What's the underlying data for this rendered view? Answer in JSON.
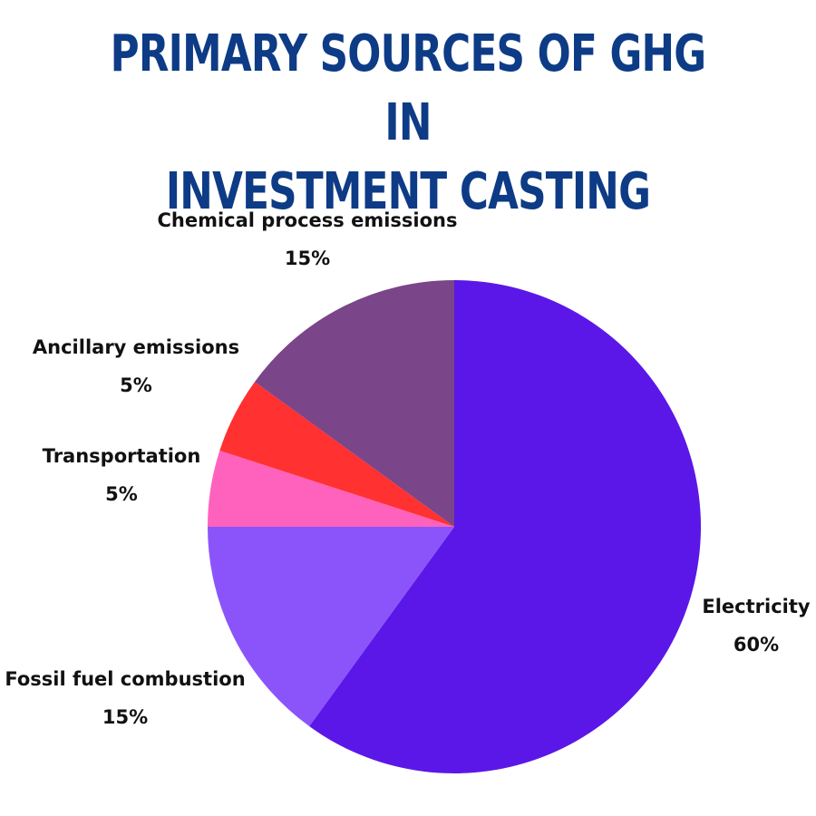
{
  "title_lines": [
    "PRIMARY SOURCES OF GHG IN",
    "INVESTMENT CASTING"
  ],
  "chart_data": {
    "type": "pie",
    "title": "PRIMARY SOURCES OF GHG IN INVESTMENT CASTING",
    "slices": [
      {
        "label": "Electricity",
        "value": 60,
        "value_label": "60%",
        "color": "#5b17e8"
      },
      {
        "label": "Fossil fuel combustion",
        "value": 15,
        "value_label": "15%",
        "color": "#8b54fb"
      },
      {
        "label": "Transportation",
        "value": 5,
        "value_label": "5%",
        "color": "#ff62bd"
      },
      {
        "label": "Ancillary emissions",
        "value": 5,
        "value_label": "5%",
        "color": "#ff3131"
      },
      {
        "label": "Chemical process emissions",
        "value": 15,
        "value_label": "15%",
        "color": "#7a4589"
      }
    ],
    "start": "12 o'clock",
    "direction": "clockwise",
    "legend": "none (labels beside slices)"
  }
}
